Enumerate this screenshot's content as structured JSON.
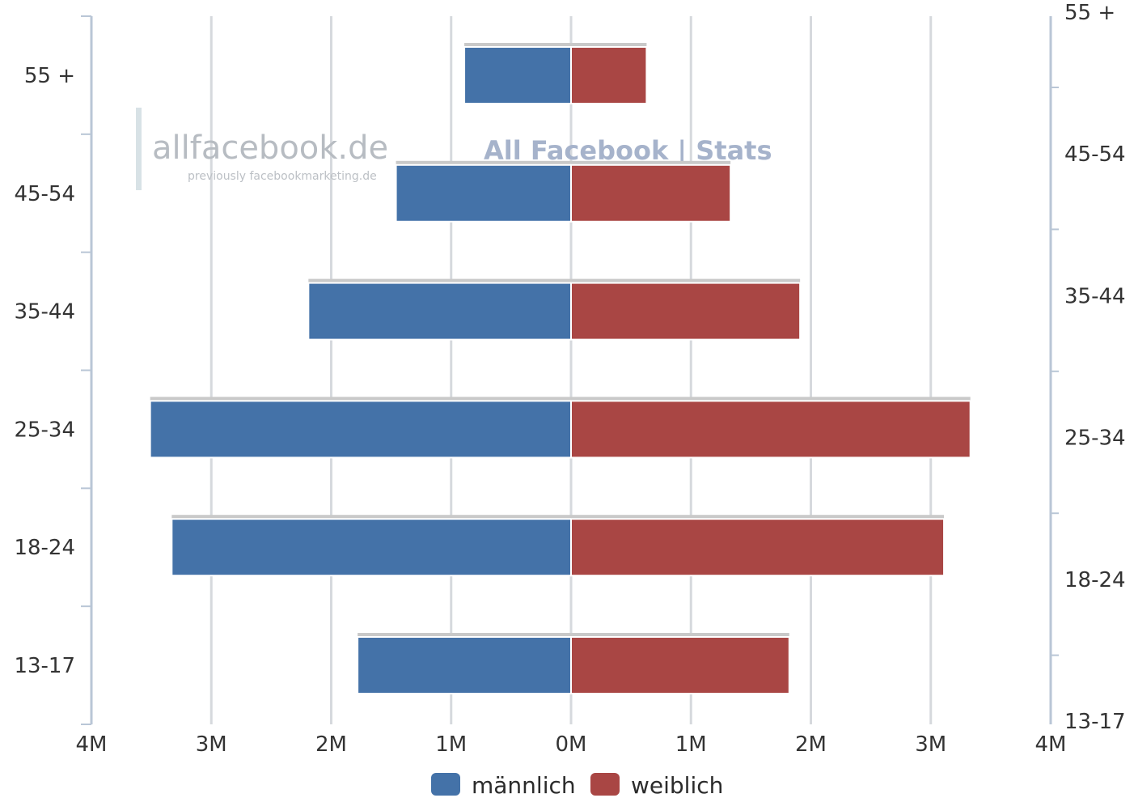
{
  "watermark": {
    "brand": "allfacebook.de",
    "brand_tagline": "previously facebookmarketing.de",
    "stats_label": "All Facebook | Stats"
  },
  "chart_data": {
    "type": "bar",
    "orientation": "horizontal",
    "layout": "population-pyramid",
    "categories": [
      "13-17",
      "18-24",
      "25-34",
      "35-44",
      "45-54",
      "55 +"
    ],
    "series": [
      {
        "name": "männlich",
        "side": "left",
        "color": "#4472a8",
        "values": [
          1.78,
          3.33,
          3.51,
          2.19,
          1.46,
          0.89
        ]
      },
      {
        "name": "weiblich",
        "side": "right",
        "color": "#a94644",
        "values": [
          1.82,
          3.11,
          3.33,
          1.91,
          1.33,
          0.63
        ]
      }
    ],
    "x_ticks": [
      "4M",
      "3M",
      "2M",
      "1M",
      "0M",
      "1M",
      "2M",
      "3M",
      "4M"
    ],
    "xlim": [
      -4,
      4
    ],
    "x_unit": "M",
    "y_left_labels": [
      "13-17",
      "18-24",
      "25-34",
      "35-44",
      "45-54",
      "55 +"
    ],
    "y_right_labels": [
      "13-17",
      "18-24",
      "25-34",
      "35-44",
      "45-54",
      "55 +"
    ],
    "grid": true,
    "legend_position": "bottom-center",
    "title": "",
    "xlabel": "",
    "ylabel": ""
  }
}
